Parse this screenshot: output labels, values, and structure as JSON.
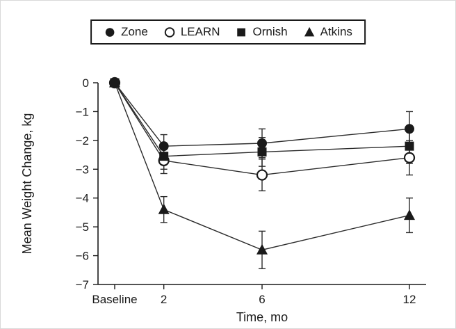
{
  "figure": {
    "background": "#ffffff",
    "border_color": "#d9d9d9"
  },
  "legend": {
    "border_color": "#1a1a1a",
    "position": "top-center",
    "items": [
      {
        "label": "Zone",
        "marker": "circle-filled"
      },
      {
        "label": "LEARN",
        "marker": "circle-open"
      },
      {
        "label": "Ornish",
        "marker": "square-filled"
      },
      {
        "label": "Atkins",
        "marker": "triangle-filled"
      }
    ]
  },
  "chart_data": {
    "type": "line",
    "title": "",
    "xlabel": "Time, mo",
    "ylabel": "Mean Weight Change, kg",
    "x_tick_labels": [
      "Baseline",
      "2",
      "6",
      "12"
    ],
    "x_values_months": [
      0,
      2,
      6,
      12
    ],
    "xlim_months": [
      0,
      12
    ],
    "ylim": [
      -7,
      0
    ],
    "yticks": [
      0,
      -1,
      -2,
      -3,
      -4,
      -5,
      -6,
      -7
    ],
    "ytick_labels": [
      "0",
      "−1",
      "−2",
      "−3",
      "−4",
      "−5",
      "−6",
      "−7"
    ],
    "grid": false,
    "legend_position": "top-center",
    "marker_color": "#1a1a1a",
    "line_color": "#2b2b2b",
    "series": [
      {
        "name": "Zone",
        "marker": "circle-filled",
        "values": [
          0,
          -2.2,
          -2.1,
          -1.6
        ],
        "errors": [
          0,
          0.4,
          0.5,
          0.6
        ]
      },
      {
        "name": "LEARN",
        "marker": "circle-open",
        "values": [
          0,
          -2.7,
          -3.2,
          -2.6
        ],
        "errors": [
          0,
          0.45,
          0.55,
          0.6
        ]
      },
      {
        "name": "Ornish",
        "marker": "square-filled",
        "values": [
          0,
          -2.55,
          -2.4,
          -2.2
        ],
        "errors": [
          0,
          0.45,
          0.5,
          0.6
        ]
      },
      {
        "name": "Atkins",
        "marker": "triangle-filled",
        "values": [
          0,
          -4.4,
          -5.8,
          -4.6
        ],
        "errors": [
          0,
          0.45,
          0.65,
          0.6
        ]
      }
    ]
  }
}
